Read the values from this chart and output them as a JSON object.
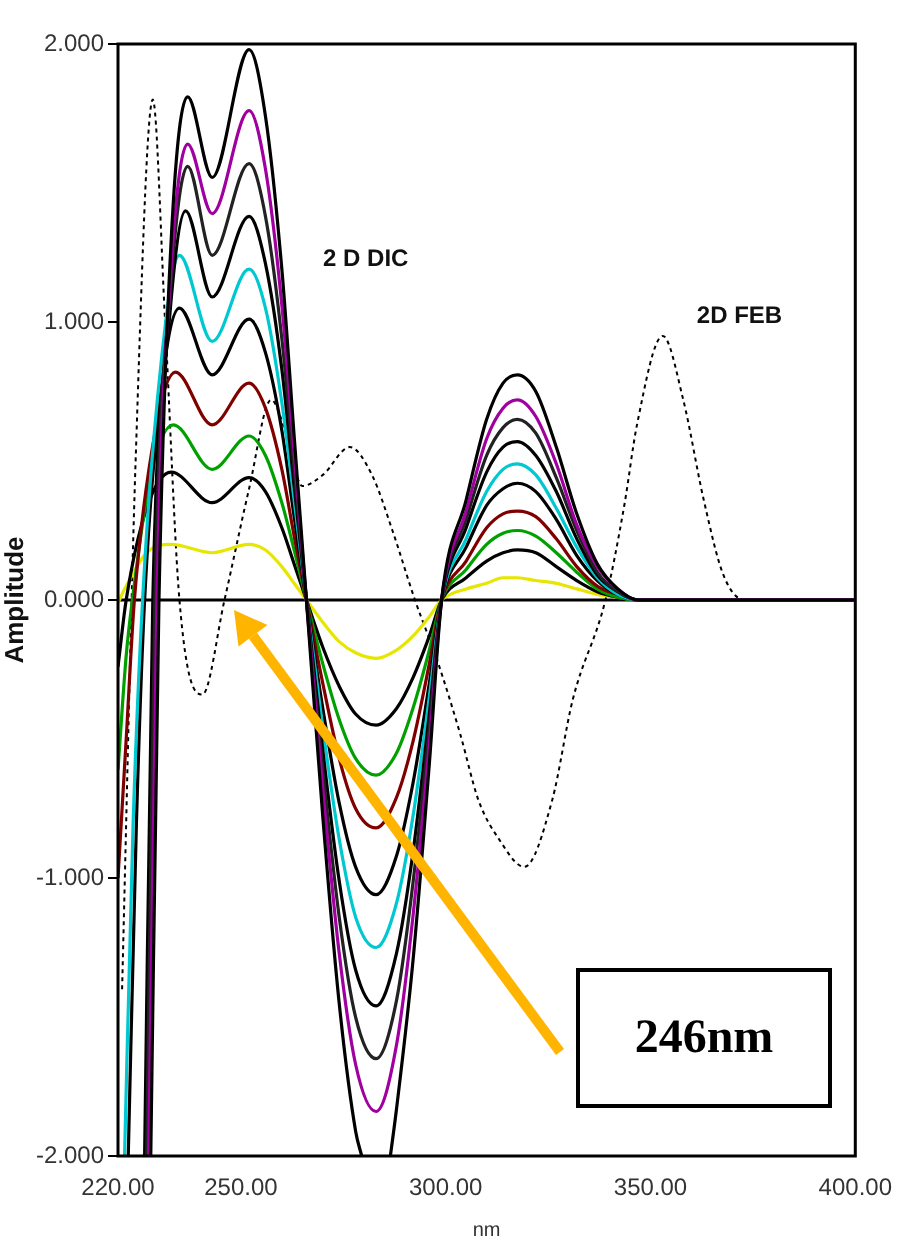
{
  "chart_data": {
    "type": "line",
    "xlabel": "nm",
    "ylabel": "Amplitude",
    "xlim": [
      220,
      400
    ],
    "ylim": [
      -2,
      2
    ],
    "xticks": [
      {
        "value": 220,
        "label": "220.00"
      },
      {
        "value": 250,
        "label": "250.00"
      },
      {
        "value": 300,
        "label": "300.00"
      },
      {
        "value": 350,
        "label": "350.00"
      },
      {
        "value": 400,
        "label": "400.00"
      }
    ],
    "yticks": [
      {
        "value": -2,
        "label": "-2.000"
      },
      {
        "value": -1,
        "label": "-1.000"
      },
      {
        "value": 0,
        "label": "0.000"
      },
      {
        "value": 1,
        "label": "1.000"
      },
      {
        "value": 2,
        "label": "2.000"
      }
    ],
    "legend": false,
    "marker": "none",
    "line_style": "solid",
    "ref_lines": [
      {
        "axis": "y",
        "value": 0,
        "color": "#000000"
      }
    ],
    "annotations": [
      "2 D DIC",
      "2D FEB",
      "246nm"
    ],
    "series": [
      {
        "color": "#000000",
        "x": [
          228,
          230,
          233,
          237,
          243,
          252,
          256,
          260,
          263,
          266,
          270,
          274,
          278,
          279.5,
          283,
          286.5,
          288,
          292,
          296,
          299,
          305,
          310,
          314,
          317.5,
          322,
          327,
          332,
          337,
          342,
          347,
          400
        ],
        "values": [
          -2,
          0,
          1.3,
          1.81,
          1.52,
          1.98,
          1.74,
          1.19,
          0.59,
          0,
          -0.78,
          -1.45,
          -1.91,
          -2,
          null,
          -2,
          -1.83,
          -1.3,
          -0.59,
          0,
          0.36,
          0.65,
          0.78,
          0.81,
          0.75,
          0.55,
          0.31,
          0.13,
          0.04,
          0,
          0
        ]
      },
      {
        "color": "#a000a0",
        "x": [
          227.5,
          229.5,
          233,
          237,
          243,
          252,
          256,
          260,
          263,
          266,
          270,
          274,
          278,
          283,
          288,
          292,
          296,
          299,
          305,
          310,
          314,
          317.5,
          322,
          327,
          332,
          337,
          342,
          347,
          400
        ],
        "values": [
          -2,
          0,
          1.2,
          1.64,
          1.39,
          1.76,
          1.55,
          1.06,
          0.53,
          0,
          -0.68,
          -1.27,
          -1.67,
          -1.84,
          -1.6,
          -1.14,
          -0.52,
          0,
          0.32,
          0.58,
          0.69,
          0.72,
          0.66,
          0.49,
          0.27,
          0.12,
          0.04,
          0,
          0
        ]
      },
      {
        "color": "#222222",
        "x": [
          227,
          229,
          233,
          237,
          243,
          252,
          256,
          260,
          263,
          266,
          270,
          274,
          278,
          283,
          288,
          292,
          296,
          299,
          305,
          310,
          314,
          317.5,
          322,
          327,
          332,
          337,
          342,
          347,
          400
        ],
        "values": [
          -2,
          0,
          1.15,
          1.56,
          1.24,
          1.57,
          1.38,
          0.94,
          0.47,
          0,
          -0.61,
          -1.14,
          -1.5,
          -1.65,
          -1.44,
          -1.02,
          -0.46,
          0,
          0.29,
          0.52,
          0.62,
          0.65,
          0.6,
          0.44,
          0.25,
          0.1,
          0.03,
          0,
          0
        ]
      },
      {
        "color": "#000000",
        "x": [
          226.5,
          228.5,
          232.5,
          236.5,
          243,
          252,
          256,
          260,
          263,
          266,
          270,
          274,
          278,
          283,
          288,
          292,
          296,
          299,
          305,
          310,
          314,
          317.5,
          322,
          327,
          332,
          337,
          342,
          347,
          400
        ],
        "values": [
          -2,
          0,
          1.0,
          1.4,
          1.09,
          1.38,
          1.21,
          0.83,
          0.41,
          0,
          -0.54,
          -1.01,
          -1.33,
          -1.46,
          -1.27,
          -0.91,
          -0.41,
          0,
          0.26,
          0.46,
          0.55,
          0.57,
          0.52,
          0.39,
          0.22,
          0.09,
          0.03,
          0,
          0
        ]
      },
      {
        "color": "#00c8d0",
        "x": [
          221.6,
          223.7,
          226,
          230.5,
          235,
          243,
          252,
          256,
          260,
          263,
          266,
          270,
          274,
          278,
          283,
          288,
          292,
          296,
          299,
          305,
          310,
          314,
          317.5,
          322,
          327,
          332,
          337,
          342,
          347,
          400
        ],
        "values": [
          -2,
          -0.8,
          0,
          0.85,
          1.24,
          0.93,
          1.19,
          1.05,
          0.71,
          0.36,
          0,
          -0.46,
          -0.86,
          -1.14,
          -1.25,
          -1.09,
          -0.78,
          -0.35,
          0,
          0.22,
          0.39,
          0.47,
          0.49,
          0.45,
          0.33,
          0.19,
          0.08,
          0.02,
          0,
          0
        ]
      },
      {
        "color": "#000000",
        "x": [
          222.5,
          224.5,
          226.5,
          230.5,
          235,
          243,
          252,
          256,
          260,
          263,
          266,
          270,
          274,
          278,
          283,
          288,
          292,
          296,
          299,
          305,
          310,
          314,
          317.5,
          322,
          327,
          332,
          337,
          342,
          347,
          400
        ],
        "values": [
          -2,
          -0.8,
          0,
          0.75,
          1.05,
          0.81,
          1.01,
          0.89,
          0.61,
          0.3,
          0,
          -0.39,
          -0.73,
          -0.96,
          -1.06,
          -0.92,
          -0.66,
          -0.3,
          0,
          0.19,
          0.34,
          0.4,
          0.42,
          0.39,
          0.29,
          0.16,
          0.07,
          0.02,
          0,
          0
        ]
      },
      {
        "color": "#800000",
        "x": [
          220,
          222,
          224,
          229,
          234,
          243,
          252,
          256,
          260,
          263,
          266,
          270,
          274,
          278,
          283,
          288,
          292,
          296,
          299,
          305,
          310,
          314,
          317.5,
          322,
          327,
          332,
          337,
          342,
          347,
          400
        ],
        "values": [
          -1.0,
          -0.5,
          0,
          0.6,
          0.82,
          0.63,
          0.78,
          0.69,
          0.47,
          0.23,
          0,
          -0.3,
          -0.57,
          -0.75,
          -0.82,
          -0.71,
          -0.51,
          -0.23,
          0,
          0.14,
          0.26,
          0.31,
          0.32,
          0.3,
          0.22,
          0.12,
          0.05,
          0.02,
          0,
          0
        ]
      },
      {
        "color": "#00a000",
        "x": [
          220,
          222,
          223.5,
          228,
          233.5,
          243,
          252,
          256,
          260,
          263,
          266,
          270,
          274,
          278,
          283,
          288,
          292,
          296,
          299,
          305,
          310,
          314,
          317.5,
          322,
          327,
          332,
          337,
          342,
          347,
          400
        ],
        "values": [
          -0.61,
          -0.2,
          0,
          0.45,
          0.63,
          0.47,
          0.59,
          0.52,
          0.35,
          0.18,
          0,
          -0.23,
          -0.43,
          -0.57,
          -0.63,
          -0.55,
          -0.39,
          -0.18,
          0,
          0.11,
          0.2,
          0.24,
          0.25,
          0.23,
          0.17,
          0.1,
          0.04,
          0.01,
          0,
          0
        ]
      },
      {
        "color": "#000000",
        "x": [
          220,
          222,
          227,
          233,
          243,
          252,
          256,
          260,
          263,
          266,
          270,
          274,
          278,
          283,
          288,
          292,
          296,
          299,
          305,
          310,
          314,
          317.5,
          322,
          327,
          332,
          337,
          342,
          347,
          400
        ],
        "values": [
          -0.24,
          0,
          0.33,
          0.46,
          0.35,
          0.44,
          0.39,
          0.26,
          0.13,
          0,
          -0.17,
          -0.31,
          -0.41,
          -0.45,
          -0.39,
          -0.28,
          -0.13,
          0,
          0.08,
          0.14,
          0.17,
          0.18,
          0.17,
          0.12,
          0.07,
          0.03,
          0.01,
          0,
          0
        ]
      },
      {
        "color": "#e6e600",
        "x": [
          220,
          222,
          227,
          233,
          243,
          252,
          256,
          260,
          263,
          266,
          270,
          274,
          278,
          283,
          288,
          292,
          296,
          299,
          305,
          310,
          314,
          317.5,
          322,
          327,
          332,
          337,
          342,
          347,
          400
        ],
        "values": [
          -0.01,
          0.05,
          0.17,
          0.2,
          0.17,
          0.2,
          0.18,
          0.12,
          0.06,
          0,
          -0.08,
          -0.15,
          -0.19,
          -0.21,
          -0.18,
          -0.13,
          -0.06,
          0,
          0.04,
          0.06,
          0.08,
          0.08,
          0.07,
          0.06,
          0.04,
          0.02,
          0.01,
          0,
          0
        ]
      },
      {
        "color": "#000000",
        "line_style": "dotted",
        "x": [
          221,
          224.3,
          228.5,
          231.5,
          235,
          240.6,
          246,
          252,
          257.4,
          261,
          265,
          270,
          276.6,
          282,
          287,
          292.5,
          298,
          303.5,
          308,
          313,
          319.2,
          326,
          331,
          339,
          343.6,
          346.7,
          353,
          358,
          363,
          367.8,
          373,
          400
        ],
        "values": [
          -1.4,
          0.5,
          1.8,
          1.0,
          0,
          -0.34,
          0,
          0.4,
          0.72,
          0.6,
          0.41,
          0.45,
          0.55,
          0.45,
          0.25,
          0,
          -0.22,
          -0.48,
          -0.72,
          -0.86,
          -0.96,
          -0.72,
          -0.36,
          0,
          0.34,
          0.63,
          0.95,
          0.72,
          0.36,
          0.09,
          0,
          0
        ]
      }
    ]
  }
}
